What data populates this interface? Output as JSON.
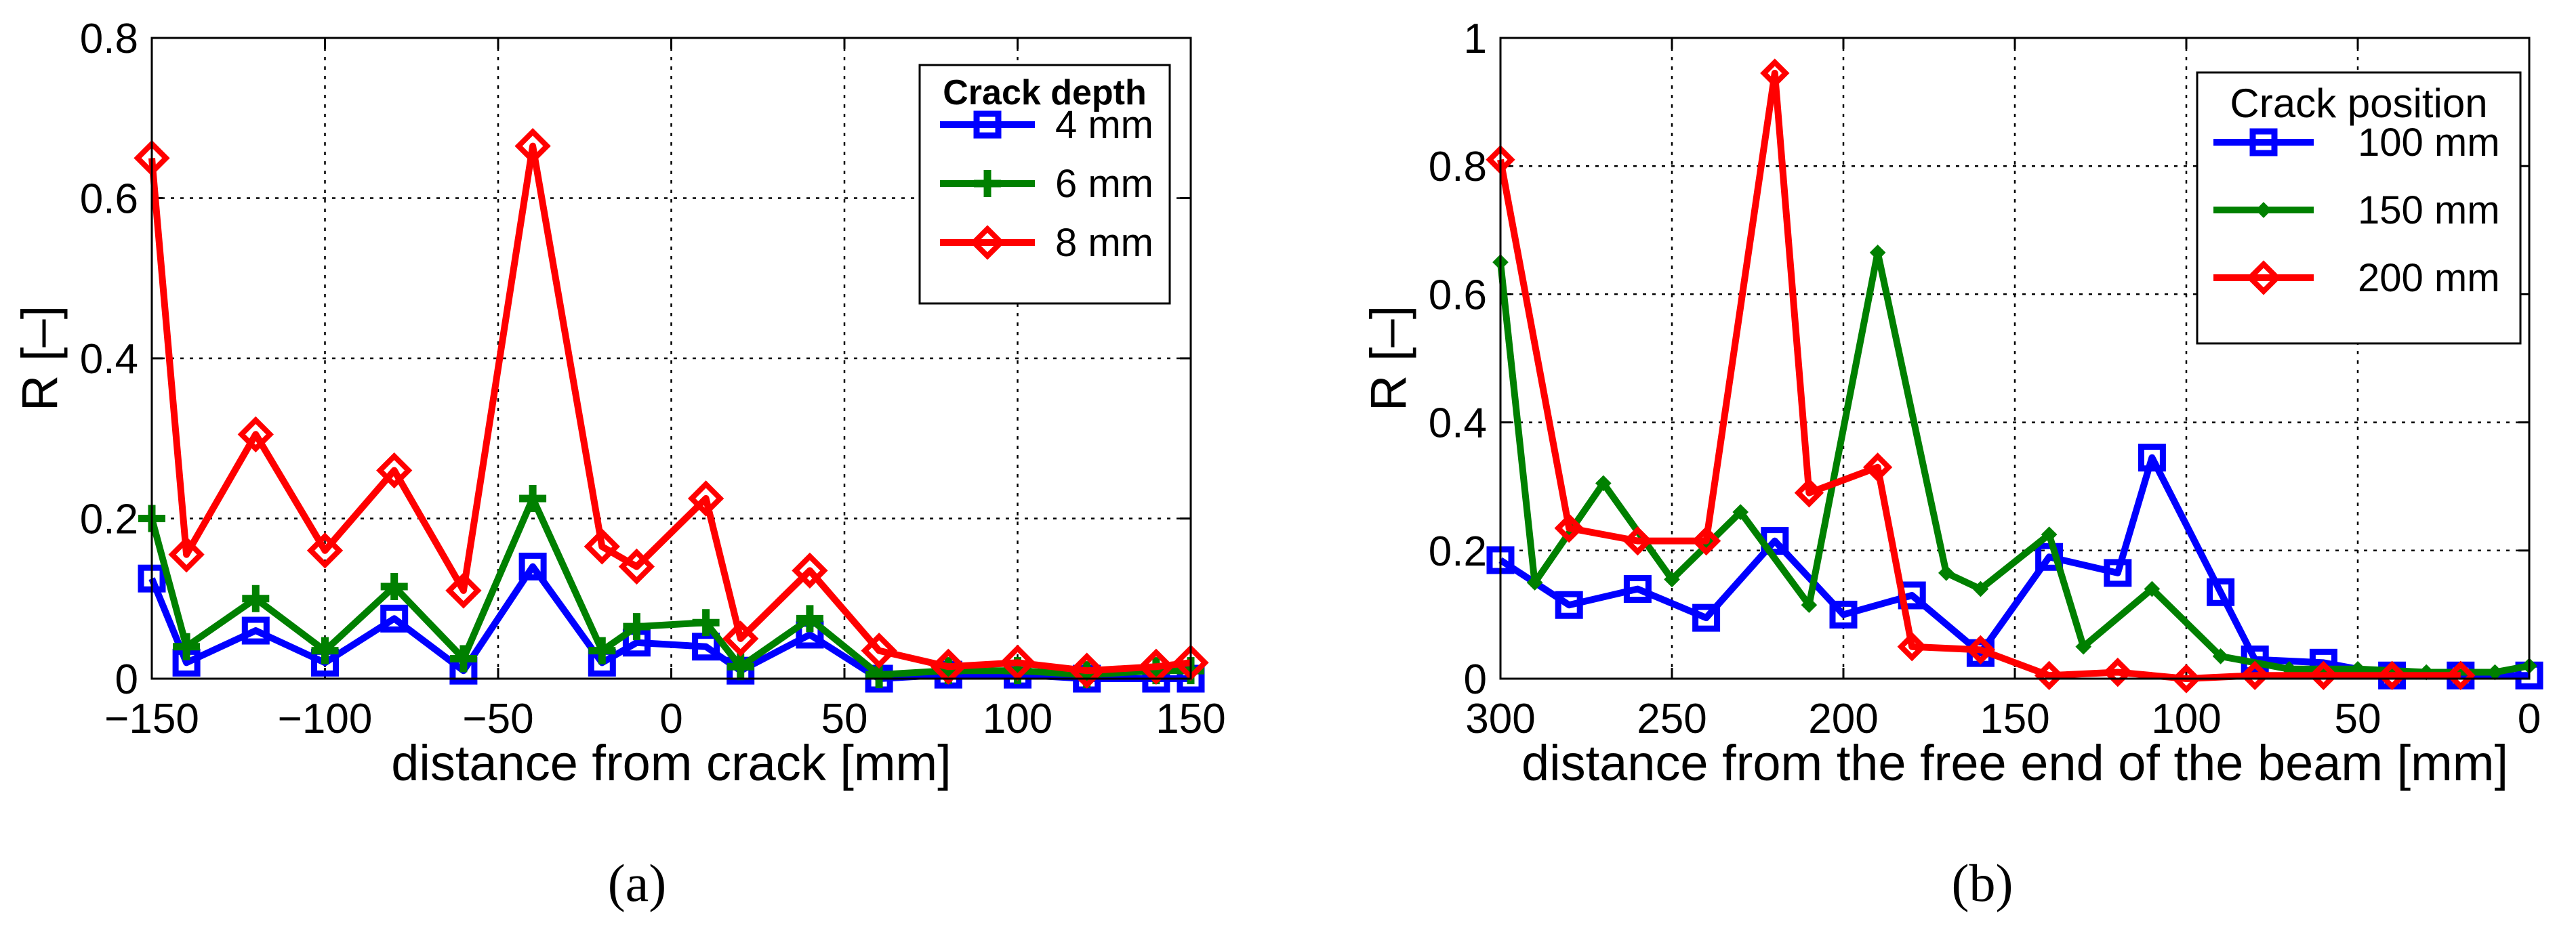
{
  "chart_data": [
    {
      "type": "line",
      "title": "",
      "caption": "(a)",
      "xlabel": "distance from crack [mm]",
      "ylabel": "R [–]",
      "xlim": [
        -150,
        150
      ],
      "ylim": [
        0,
        0.8
      ],
      "xticks": [
        -150,
        -100,
        -50,
        0,
        50,
        100,
        150
      ],
      "xtick_labels": [
        "−150",
        "−100",
        "−50",
        "0",
        "50",
        "100",
        "150"
      ],
      "yticks": [
        0,
        0.2,
        0.4,
        0.6,
        0.8
      ],
      "ytick_labels": [
        "0",
        "0.2",
        "0.4",
        "0.6",
        "0.8"
      ],
      "grid": true,
      "legend_position": "top-right",
      "legend_title": "Crack depth",
      "series": [
        {
          "name": "4 mm",
          "color": "#0000ff",
          "marker": "square",
          "x": [
            -150,
            -140,
            -120,
            -100,
            -80,
            -60,
            -40,
            -20,
            -10,
            10,
            20,
            40,
            60,
            80,
            100,
            120,
            140,
            150
          ],
          "y": [
            0.125,
            0.02,
            0.06,
            0.02,
            0.075,
            0.01,
            0.14,
            0.02,
            0.045,
            0.04,
            0.01,
            0.055,
            0.0,
            0.005,
            0.005,
            0.0,
            0.0,
            0.0
          ]
        },
        {
          "name": "6 mm",
          "color": "#008000",
          "marker": "plus",
          "x": [
            -150,
            -140,
            -120,
            -100,
            -80,
            -60,
            -40,
            -20,
            -10,
            10,
            20,
            40,
            60,
            80,
            100,
            120,
            140,
            150
          ],
          "y": [
            0.2,
            0.04,
            0.1,
            0.035,
            0.115,
            0.025,
            0.225,
            0.035,
            0.065,
            0.07,
            0.015,
            0.075,
            0.005,
            0.01,
            0.01,
            0.005,
            0.01,
            0.01
          ]
        },
        {
          "name": "8 mm",
          "color": "#ff0000",
          "marker": "diamond",
          "x": [
            -150,
            -140,
            -120,
            -100,
            -80,
            -60,
            -40,
            -20,
            -10,
            10,
            20,
            40,
            60,
            80,
            100,
            120,
            140,
            150
          ],
          "y": [
            0.65,
            0.155,
            0.305,
            0.16,
            0.26,
            0.11,
            0.665,
            0.165,
            0.14,
            0.225,
            0.05,
            0.135,
            0.035,
            0.015,
            0.02,
            0.01,
            0.015,
            0.02
          ]
        }
      ]
    },
    {
      "type": "line",
      "title": "",
      "caption": "(b)",
      "xlabel": "distance from the free end of the beam [mm]",
      "ylabel": "R [–]",
      "xlim": [
        300,
        0
      ],
      "ylim": [
        0,
        1
      ],
      "xticks": [
        300,
        250,
        200,
        150,
        100,
        50,
        0
      ],
      "xtick_labels": [
        "300",
        "250",
        "200",
        "150",
        "100",
        "50",
        "0"
      ],
      "yticks": [
        0,
        0.2,
        0.4,
        0.6,
        0.8,
        1
      ],
      "ytick_labels": [
        "0",
        "0.2",
        "0.4",
        "0.6",
        "0.8",
        "1"
      ],
      "grid": true,
      "legend_position": "top-right",
      "legend_title": "Crack position",
      "series": [
        {
          "name": "100 mm",
          "color": "#0000ff",
          "marker": "square",
          "x": [
            300,
            280,
            260,
            240,
            220,
            200,
            180,
            160,
            140,
            120,
            110,
            90,
            80,
            60,
            40,
            20,
            0
          ],
          "y": [
            0.185,
            0.115,
            0.14,
            0.095,
            0.215,
            0.1,
            0.13,
            0.04,
            0.19,
            0.165,
            0.345,
            0.135,
            0.03,
            0.025,
            0.005,
            0.005,
            0.005
          ]
        },
        {
          "name": "150 mm",
          "color": "#008000",
          "marker": "small-diamond",
          "x": [
            300,
            290,
            270,
            250,
            230,
            210,
            190,
            170,
            160,
            140,
            130,
            110,
            90,
            70,
            50,
            30,
            10,
            0
          ],
          "y": [
            0.65,
            0.15,
            0.305,
            0.155,
            0.26,
            0.115,
            0.665,
            0.165,
            0.14,
            0.225,
            0.05,
            0.14,
            0.035,
            0.015,
            0.015,
            0.01,
            0.01,
            0.02
          ]
        },
        {
          "name": "200 mm",
          "color": "#ff0000",
          "marker": "diamond",
          "x": [
            300,
            280,
            260,
            240,
            220,
            210,
            190,
            180,
            160,
            140,
            120,
            100,
            80,
            60,
            40,
            20
          ],
          "y": [
            0.81,
            0.235,
            0.215,
            0.215,
            0.945,
            0.29,
            0.33,
            0.05,
            0.045,
            0.005,
            0.01,
            0.0,
            0.005,
            0.005,
            0.005,
            0.005
          ]
        }
      ]
    }
  ]
}
